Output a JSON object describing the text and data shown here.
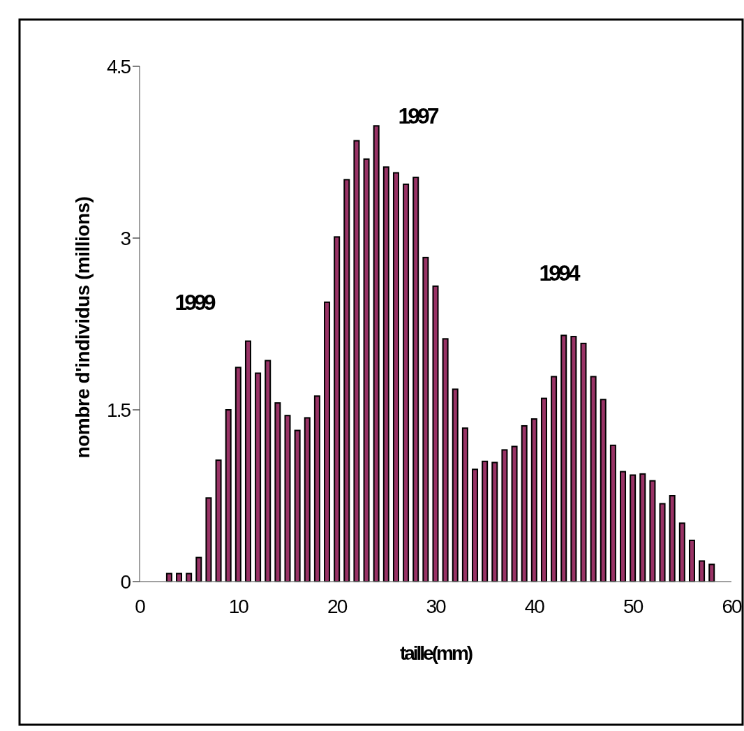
{
  "chart_data": {
    "type": "bar",
    "xlabel": "taille(mm)",
    "ylabel": "nombre d'individus (millions)",
    "x": [
      3,
      4,
      5,
      6,
      7,
      8,
      9,
      10,
      11,
      12,
      13,
      14,
      15,
      16,
      17,
      18,
      19,
      20,
      21,
      22,
      23,
      24,
      25,
      26,
      27,
      28,
      29,
      30,
      31,
      32,
      33,
      34,
      35,
      36,
      37,
      38,
      39,
      40,
      41,
      42,
      43,
      44,
      45,
      46,
      47,
      48,
      49,
      50,
      51,
      52,
      53,
      54,
      55,
      56,
      57,
      58
    ],
    "values": [
      0.07,
      0.07,
      0.07,
      0.21,
      0.73,
      1.06,
      1.5,
      1.87,
      2.1,
      1.82,
      1.93,
      1.56,
      1.45,
      1.32,
      1.43,
      1.62,
      2.44,
      3.01,
      3.51,
      3.85,
      3.69,
      3.98,
      3.62,
      3.57,
      3.47,
      3.53,
      2.83,
      2.58,
      2.12,
      1.68,
      1.34,
      0.98,
      1.05,
      1.04,
      1.15,
      1.18,
      1.36,
      1.42,
      1.6,
      1.79,
      2.15,
      2.14,
      2.08,
      1.79,
      1.59,
      1.19,
      0.96,
      0.93,
      0.94,
      0.88,
      0.68,
      0.75,
      0.51,
      0.36,
      0.18,
      0.15
    ],
    "color": "#993366",
    "xlim": [
      0,
      60
    ],
    "xticks": [
      0,
      10,
      20,
      30,
      40,
      50,
      60
    ],
    "ylim": [
      0,
      4.5
    ],
    "yticks": [
      0,
      1.5,
      3,
      4.5
    ],
    "grid": false,
    "annotations": [
      "1999",
      "1997",
      "1994"
    ]
  }
}
